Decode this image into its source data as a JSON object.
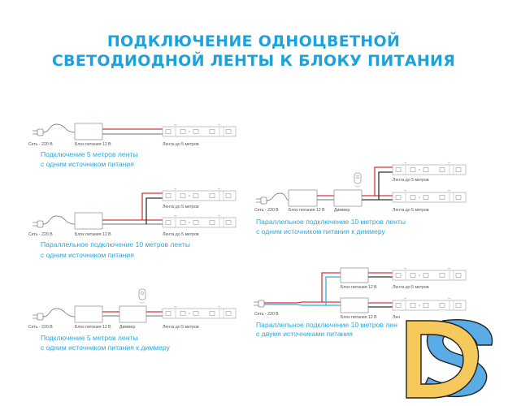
{
  "title": {
    "line1": "ПОДКЛЮЧЕНИЕ ОДНОЦВЕТНОЙ",
    "line2": "СВЕТОДИОДНОЙ ЛЕНТЫ К БЛОКУ ПИТАНИЯ"
  },
  "labels": {
    "mains": "Сеть - 220 В",
    "psu": "Блок питания 12 В",
    "strip": "Лента до 5 метров",
    "dimmer": "Диммер",
    "strip_cut": "Лен"
  },
  "diagrams": [
    {
      "caption1": "Подключение 5 метров ленты",
      "caption2": "с одним источником питания"
    },
    {
      "caption1": "Параллельное подключение 10 метров ленты",
      "caption2": "с одним источником питания"
    },
    {
      "caption1": "Подключение 5 метров ленты",
      "caption2": "с одним источником питания к диммеру"
    },
    {
      "caption1": "Параллельное подключение 10 метров ленты",
      "caption2": "с одним источником питания к диммеру"
    },
    {
      "caption1": "Параллельное подключение 10 метров лен",
      "caption2": "с двумя источниками питания"
    }
  ],
  "logo": {
    "text": "DS",
    "colors": {
      "d": "#f5c95c",
      "s": "#5aace6"
    }
  },
  "colors": {
    "title": "#1ea2dc",
    "positive_wire": "#d8343f",
    "negative_wire": "#333333",
    "alt_wire": "#3aa8dc"
  }
}
